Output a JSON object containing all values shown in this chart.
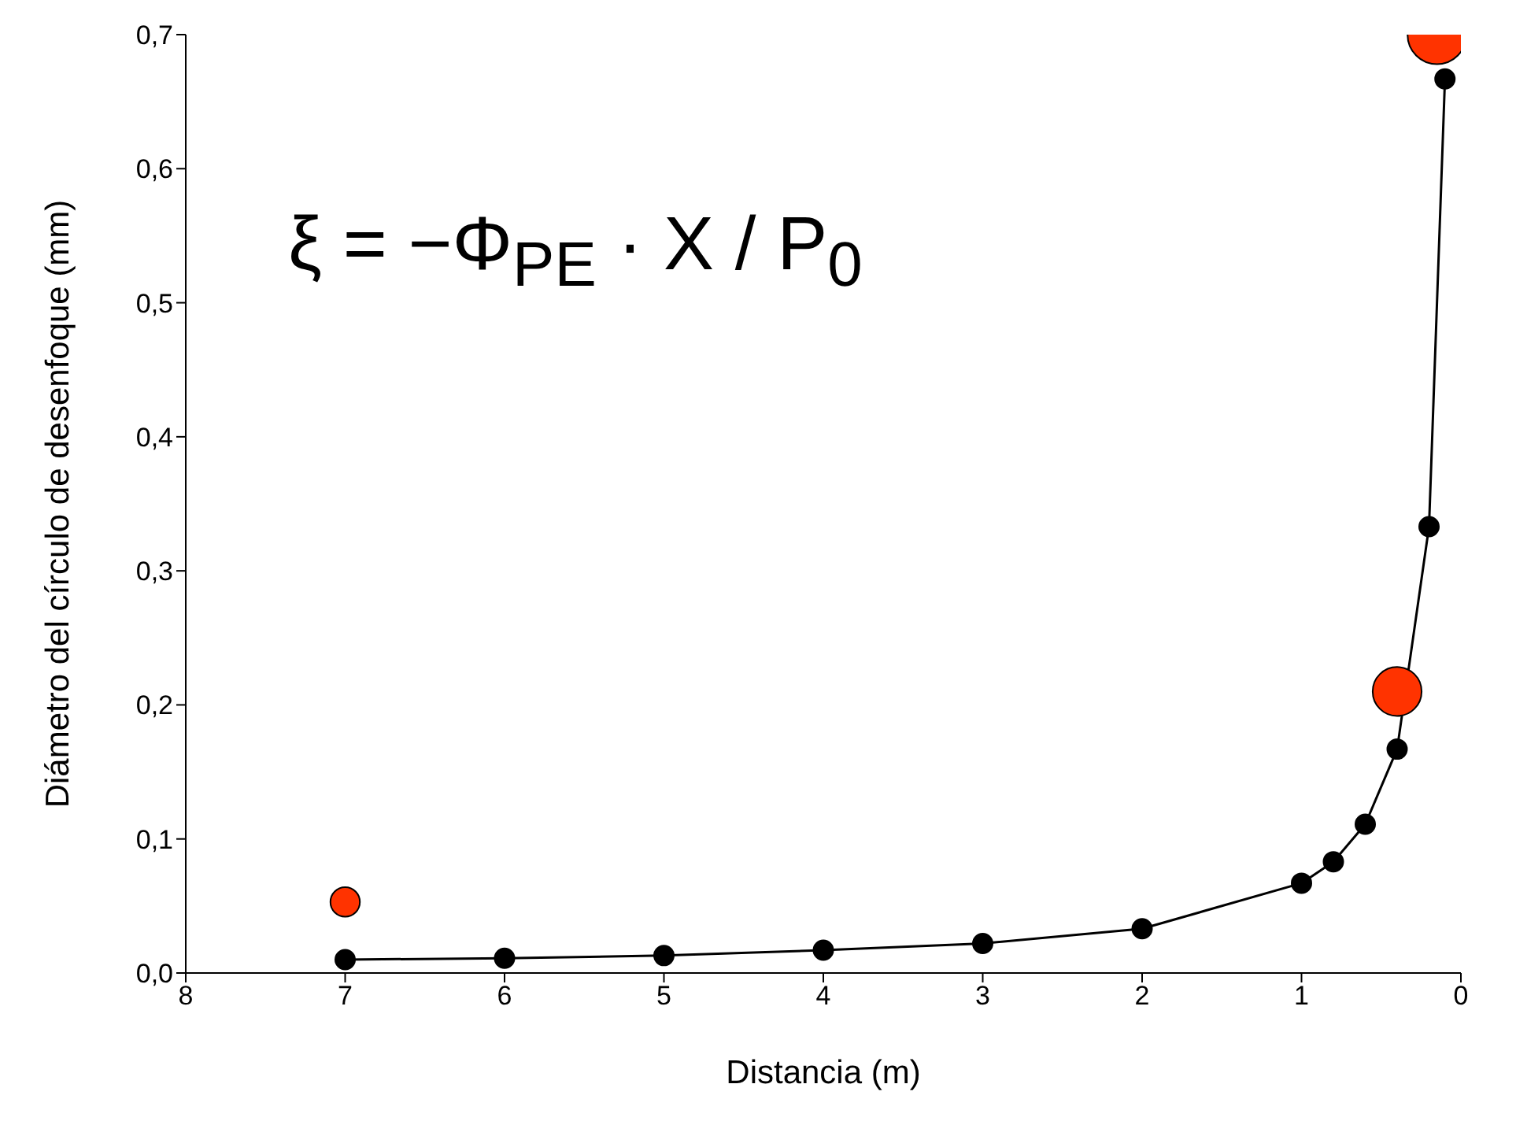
{
  "chart_data": {
    "type": "line",
    "xlabel": "Distancia (m)",
    "ylabel": "Diámetro del círculo de desenfoque (mm)",
    "annotations": [
      "ξ = −Φ$_{PE}$ · X / P$_{0}$"
    ],
    "xlim": [
      8,
      0
    ],
    "xticks": [
      8,
      7,
      6,
      5,
      4,
      3,
      2,
      1,
      0
    ],
    "ylim": [
      0,
      0.7
    ],
    "yticks": [
      {
        "value": 0,
        "label": "0,0"
      },
      {
        "value": 0.1,
        "label": "0,1"
      },
      {
        "value": 0.2,
        "label": "0,2"
      },
      {
        "value": 0.3,
        "label": "0,3"
      },
      {
        "value": 0.4,
        "label": "0,4"
      },
      {
        "value": 0.5,
        "label": "0,5"
      },
      {
        "value": 0.6,
        "label": "0,6"
      },
      {
        "value": 0.7,
        "label": "0,7"
      }
    ],
    "marker": "circle",
    "grid": false,
    "series": [
      {
        "color": "#000000",
        "x": [
          7,
          6,
          5,
          4,
          3,
          2,
          1,
          0.8,
          0.6,
          0.4,
          0.2,
          0.1
        ],
        "values": [
          0.01,
          0.011,
          0.013,
          0.017,
          0.022,
          0.033,
          0.067,
          0.083,
          0.111,
          0.167,
          0.333,
          0.667
        ]
      },
      {
        "type": "bubble",
        "color": "#ff3300",
        "x": [
          7,
          0.4,
          0.15
        ],
        "values": [
          0.053,
          0.21,
          0.7
        ],
        "sizes": [
          0.25,
          0.69,
          1
        ]
      }
    ]
  }
}
